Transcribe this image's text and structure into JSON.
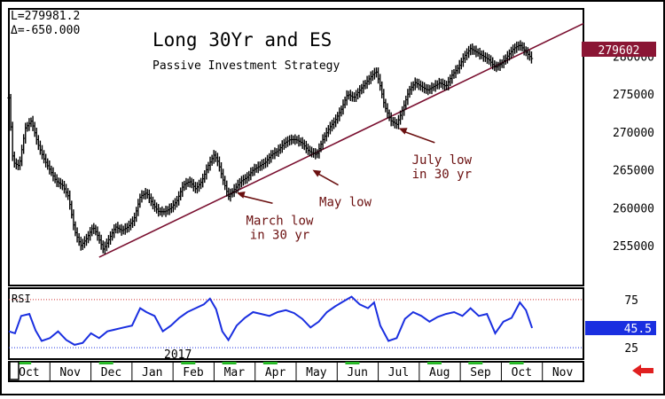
{
  "readout": {
    "last": "L=279981.2",
    "delta": "Δ=-650.000"
  },
  "chart_data": [
    {
      "type": "ohlc",
      "title": "Long 30Yr and ES",
      "subtitle": "Passive Investment Strategy",
      "ylim": [
        250000,
        286000
      ],
      "y_ticks": [
        255000,
        260000,
        265000,
        270000,
        275000,
        280000
      ],
      "y_tick_labels": [
        "255000",
        "260000",
        "265000",
        "270000",
        "275000",
        "280000"
      ],
      "last_price_label": "279602",
      "last_price": 279602,
      "x_months": [
        {
          "label": "Oct",
          "x": 0.5
        },
        {
          "label": "Nov",
          "x": 1.5
        },
        {
          "label": "Dec",
          "x": 2.5
        },
        {
          "label": "Jan",
          "x": 3.5
        },
        {
          "label": "Feb",
          "x": 4.5
        },
        {
          "label": "Mar",
          "x": 5.5
        },
        {
          "label": "Apr",
          "x": 6.5
        },
        {
          "label": "May",
          "x": 7.5
        },
        {
          "label": "Jun",
          "x": 8.5
        },
        {
          "label": "Jul",
          "x": 9.5
        },
        {
          "label": "Aug",
          "x": 10.5
        },
        {
          "label": "Sep",
          "x": 11.5
        },
        {
          "label": "Oct",
          "x": 12.5
        },
        {
          "label": "Nov",
          "x": 13.5
        }
      ],
      "year_label": "2017",
      "year_x": 3.5,
      "series": [
        {
          "name": "",
          "color": "#000000",
          "points": [
            [
              0.0,
              274500
            ],
            [
              0.1,
              266000
            ],
            [
              0.25,
              265500
            ],
            [
              0.4,
              270500
            ],
            [
              0.55,
              271500
            ],
            [
              0.7,
              268500
            ],
            [
              0.85,
              266500
            ],
            [
              1.0,
              265000
            ],
            [
              1.15,
              263500
            ],
            [
              1.3,
              263000
            ],
            [
              1.45,
              261500
            ],
            [
              1.6,
              257000
            ],
            [
              1.75,
              255000
            ],
            [
              1.9,
              256000
            ],
            [
              2.05,
              257500
            ],
            [
              2.15,
              256500
            ],
            [
              2.3,
              254500
            ],
            [
              2.45,
              256000
            ],
            [
              2.6,
              257500
            ],
            [
              2.75,
              257000
            ],
            [
              2.9,
              257500
            ],
            [
              3.05,
              258500
            ],
            [
              3.2,
              261500
            ],
            [
              3.35,
              262000
            ],
            [
              3.5,
              260500
            ],
            [
              3.65,
              259500
            ],
            [
              3.8,
              259500
            ],
            [
              3.95,
              260000
            ],
            [
              4.1,
              261000
            ],
            [
              4.25,
              263000
            ],
            [
              4.4,
              263500
            ],
            [
              4.55,
              262500
            ],
            [
              4.7,
              263500
            ],
            [
              4.85,
              265500
            ],
            [
              5.0,
              267000
            ],
            [
              5.1,
              266000
            ],
            [
              5.2,
              264000
            ],
            [
              5.35,
              261500
            ],
            [
              5.5,
              262500
            ],
            [
              5.65,
              263500
            ],
            [
              5.8,
              264000
            ],
            [
              5.95,
              265000
            ],
            [
              6.1,
              265500
            ],
            [
              6.25,
              266000
            ],
            [
              6.4,
              267000
            ],
            [
              6.55,
              267500
            ],
            [
              6.7,
              268500
            ],
            [
              6.85,
              269000
            ],
            [
              7.0,
              269000
            ],
            [
              7.15,
              268500
            ],
            [
              7.3,
              267500
            ],
            [
              7.5,
              267000
            ],
            [
              7.65,
              269000
            ],
            [
              7.8,
              270500
            ],
            [
              7.95,
              271500
            ],
            [
              8.1,
              273000
            ],
            [
              8.25,
              275000
            ],
            [
              8.4,
              274500
            ],
            [
              8.55,
              275500
            ],
            [
              8.7,
              276500
            ],
            [
              8.85,
              277500
            ],
            [
              8.95,
              278000
            ],
            [
              9.05,
              276000
            ],
            [
              9.15,
              273500
            ],
            [
              9.3,
              271500
            ],
            [
              9.45,
              271000
            ],
            [
              9.6,
              273000
            ],
            [
              9.75,
              275500
            ],
            [
              9.9,
              276500
            ],
            [
              10.05,
              276000
            ],
            [
              10.2,
              275500
            ],
            [
              10.35,
              276000
            ],
            [
              10.5,
              276500
            ],
            [
              10.65,
              276000
            ],
            [
              10.8,
              277500
            ],
            [
              10.95,
              278500
            ],
            [
              11.1,
              280000
            ],
            [
              11.25,
              281000
            ],
            [
              11.4,
              280500
            ],
            [
              11.55,
              280000
            ],
            [
              11.7,
              279500
            ],
            [
              11.85,
              278500
            ],
            [
              12.0,
              279000
            ],
            [
              12.15,
              280000
            ],
            [
              12.3,
              281000
            ],
            [
              12.45,
              281500
            ],
            [
              12.6,
              280500
            ],
            [
              12.75,
              279600
            ]
          ]
        }
      ],
      "trendline": {
        "from": [
          2.2,
          253500
        ],
        "to": [
          14.0,
          284300
        ]
      },
      "annotations": [
        {
          "lines": [
            "March low",
            "in 30 yr"
          ],
          "tx": 6.6,
          "ty": 257800,
          "ax": 5.55,
          "ay": 262000
        },
        {
          "lines": [
            "May low"
          ],
          "tx": 8.2,
          "ty": 260200,
          "ax": 7.4,
          "ay": 265000
        },
        {
          "lines": [
            "July low",
            "in 30 yr"
          ],
          "tx": 10.55,
          "ty": 265800,
          "ax": 9.5,
          "ay": 270500
        }
      ]
    },
    {
      "type": "line",
      "title": "RSI",
      "ylim": [
        15,
        85
      ],
      "y_tick_labels": [
        "75",
        "25"
      ],
      "y_ticks": [
        75,
        25
      ],
      "last_value_label": "45.5",
      "last_value": 45.5,
      "overbought": 75,
      "oversold": 25,
      "series": [
        {
          "name": "",
          "color": "#1a2fe0",
          "points": [
            [
              0.0,
              42
            ],
            [
              0.15,
              40
            ],
            [
              0.3,
              58
            ],
            [
              0.5,
              60
            ],
            [
              0.65,
              43
            ],
            [
              0.8,
              32
            ],
            [
              1.0,
              35
            ],
            [
              1.2,
              42
            ],
            [
              1.4,
              33
            ],
            [
              1.6,
              28
            ],
            [
              1.8,
              30
            ],
            [
              2.0,
              40
            ],
            [
              2.2,
              35
            ],
            [
              2.4,
              42
            ],
            [
              2.6,
              44
            ],
            [
              2.8,
              46
            ],
            [
              3.0,
              48
            ],
            [
              3.2,
              66
            ],
            [
              3.35,
              62
            ],
            [
              3.55,
              58
            ],
            [
              3.75,
              42
            ],
            [
              3.95,
              48
            ],
            [
              4.15,
              56
            ],
            [
              4.35,
              62
            ],
            [
              4.55,
              66
            ],
            [
              4.75,
              70
            ],
            [
              4.9,
              76
            ],
            [
              5.05,
              65
            ],
            [
              5.2,
              42
            ],
            [
              5.35,
              33
            ],
            [
              5.55,
              48
            ],
            [
              5.75,
              56
            ],
            [
              5.95,
              62
            ],
            [
              6.15,
              60
            ],
            [
              6.35,
              58
            ],
            [
              6.55,
              62
            ],
            [
              6.75,
              64
            ],
            [
              6.95,
              61
            ],
            [
              7.15,
              55
            ],
            [
              7.35,
              46
            ],
            [
              7.55,
              52
            ],
            [
              7.75,
              62
            ],
            [
              7.95,
              68
            ],
            [
              8.15,
              73
            ],
            [
              8.35,
              78
            ],
            [
              8.55,
              70
            ],
            [
              8.75,
              66
            ],
            [
              8.9,
              72
            ],
            [
              9.05,
              48
            ],
            [
              9.25,
              32
            ],
            [
              9.45,
              35
            ],
            [
              9.65,
              55
            ],
            [
              9.85,
              62
            ],
            [
              10.05,
              58
            ],
            [
              10.25,
              52
            ],
            [
              10.45,
              57
            ],
            [
              10.65,
              60
            ],
            [
              10.85,
              62
            ],
            [
              11.05,
              58
            ],
            [
              11.25,
              66
            ],
            [
              11.45,
              58
            ],
            [
              11.65,
              60
            ],
            [
              11.85,
              40
            ],
            [
              12.05,
              52
            ],
            [
              12.25,
              56
            ],
            [
              12.45,
              72
            ],
            [
              12.6,
              64
            ],
            [
              12.75,
              45.5
            ]
          ]
        }
      ]
    }
  ]
}
